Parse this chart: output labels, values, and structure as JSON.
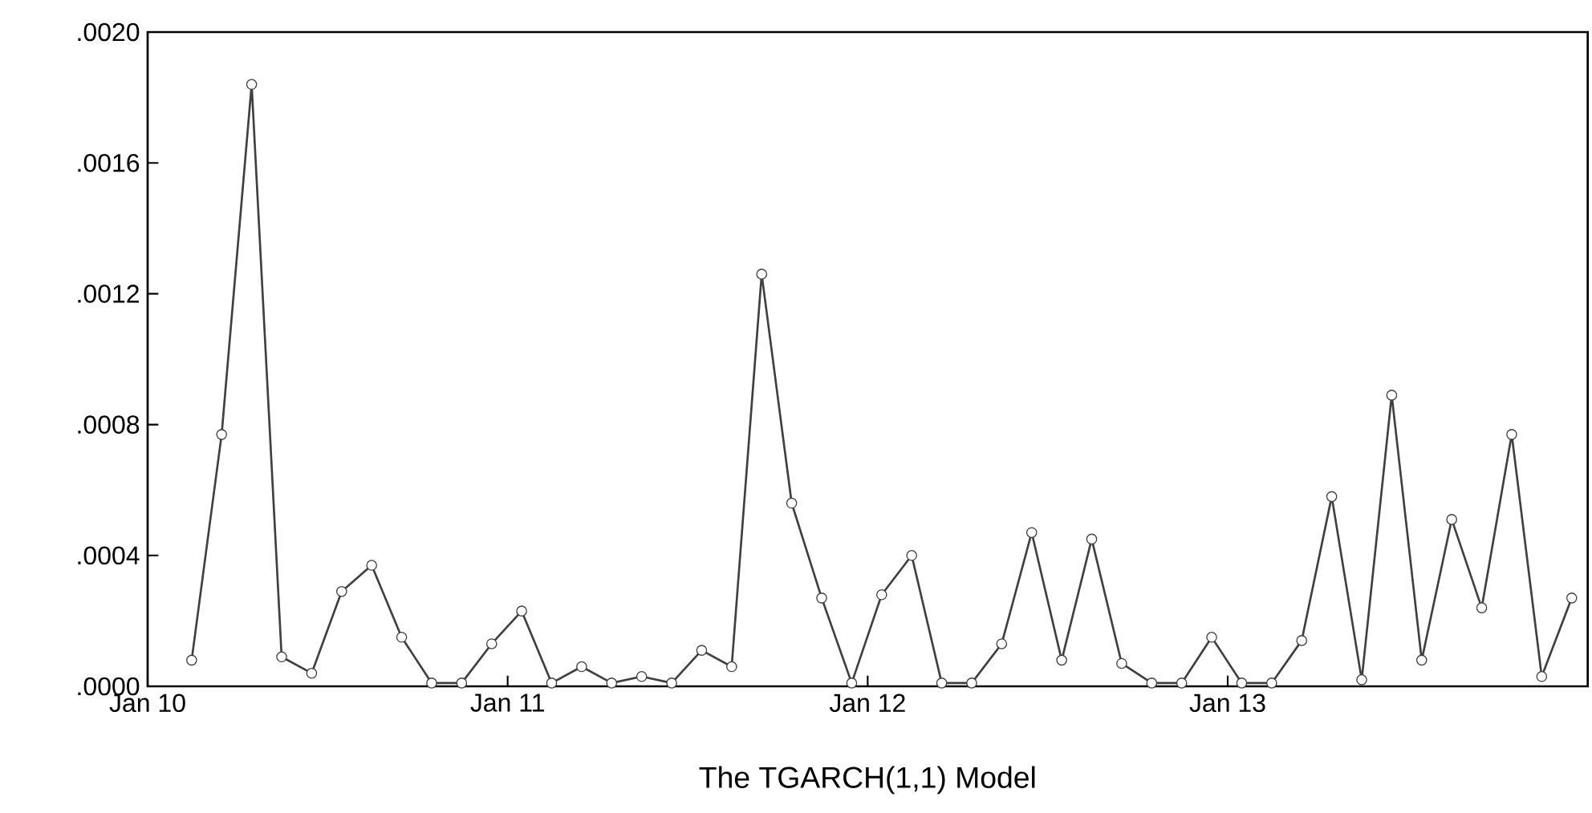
{
  "chart_data": {
    "type": "line",
    "title": "The TGARCH(1,1) Model",
    "x": [
      "2010-02-15",
      "2010-03-15",
      "2010-04-15",
      "2010-05-15",
      "2010-06-15",
      "2010-07-15",
      "2010-08-15",
      "2010-09-15",
      "2010-10-15",
      "2010-11-15",
      "2010-12-15",
      "2011-01-15",
      "2011-02-15",
      "2011-03-15",
      "2011-04-15",
      "2011-05-15",
      "2011-06-15",
      "2011-07-15",
      "2011-08-15",
      "2011-09-15",
      "2011-10-15",
      "2011-11-15",
      "2011-12-15",
      "2012-01-15",
      "2012-02-15",
      "2012-03-15",
      "2012-04-15",
      "2012-05-15",
      "2012-06-15",
      "2012-07-15",
      "2012-08-15",
      "2012-09-15",
      "2012-10-15",
      "2012-11-15",
      "2012-12-15",
      "2013-01-15",
      "2013-02-15",
      "2013-03-15",
      "2013-04-15",
      "2013-05-15",
      "2013-06-15",
      "2013-07-15",
      "2013-08-15",
      "2013-09-15",
      "2013-10-15",
      "2013-11-15",
      "2013-12-15"
    ],
    "values": [
      8e-05,
      0.00077,
      0.00184,
      9e-05,
      4e-05,
      0.00029,
      0.00037,
      0.00015,
      1e-05,
      1e-05,
      0.00013,
      0.00023,
      1e-05,
      6e-05,
      1e-05,
      3e-05,
      1e-05,
      0.00011,
      6e-05,
      0.00126,
      0.00056,
      0.00027,
      1e-05,
      0.00028,
      0.0004,
      1e-05,
      1e-05,
      0.00013,
      0.00047,
      8e-05,
      0.00045,
      7e-05,
      1e-05,
      1e-05,
      0.00015,
      1e-05,
      1e-05,
      0.00014,
      0.00058,
      2e-05,
      0.00089,
      8e-05,
      0.00051,
      0.00024,
      0.00077,
      3e-05,
      0.00027
    ],
    "color": "#404040",
    "marker": "circle",
    "line_style": "solid",
    "xlim": [
      "2010-01-01",
      "2014-01-01"
    ],
    "xticks": [
      {
        "value": "2010-01-01",
        "label": "Jan 10"
      },
      {
        "value": "2011-01-01",
        "label": "Jan 11"
      },
      {
        "value": "2012-01-01",
        "label": "Jan 12"
      },
      {
        "value": "2013-01-01",
        "label": "Jan 13"
      }
    ],
    "ylim": [
      0,
      0.002
    ],
    "yticks": [
      {
        "value": 0,
        "label": ".0000"
      },
      {
        "value": 0.0004,
        "label": ".0004"
      },
      {
        "value": 0.0008,
        "label": ".0008"
      },
      {
        "value": 0.0012,
        "label": ".0012"
      },
      {
        "value": 0.0016,
        "label": ".0016"
      },
      {
        "value": 0.002,
        "label": ".0020"
      }
    ]
  }
}
